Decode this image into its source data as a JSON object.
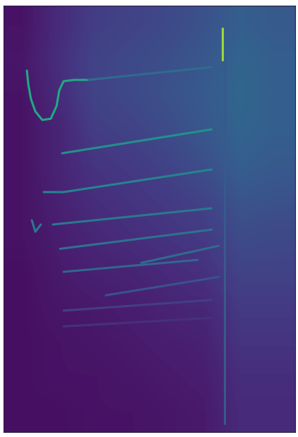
{
  "chart_data": {
    "type": "heatmap",
    "tick_labels": false,
    "xlim": [
      0,
      100
    ],
    "ylim": [
      0,
      100
    ],
    "clim": [
      0,
      1
    ],
    "cells": [
      [
        0.05,
        0.12,
        0.18,
        0.2,
        0.22,
        0.25,
        0.3,
        0.28
      ],
      [
        0.06,
        0.13,
        0.2,
        0.22,
        0.24,
        0.27,
        0.32,
        0.3
      ],
      [
        0.05,
        0.12,
        0.2,
        0.22,
        0.25,
        0.28,
        0.33,
        0.3
      ],
      [
        0.05,
        0.1,
        0.18,
        0.2,
        0.23,
        0.27,
        0.32,
        0.3
      ],
      [
        0.05,
        0.1,
        0.15,
        0.17,
        0.2,
        0.24,
        0.3,
        0.28
      ],
      [
        0.05,
        0.09,
        0.13,
        0.15,
        0.17,
        0.2,
        0.26,
        0.25
      ],
      [
        0.05,
        0.08,
        0.11,
        0.13,
        0.15,
        0.17,
        0.23,
        0.22
      ],
      [
        0.04,
        0.07,
        0.09,
        0.1,
        0.12,
        0.14,
        0.2,
        0.2
      ],
      [
        0.04,
        0.06,
        0.07,
        0.08,
        0.1,
        0.11,
        0.17,
        0.17
      ],
      [
        0.04,
        0.05,
        0.06,
        0.07,
        0.08,
        0.09,
        0.15,
        0.15
      ],
      [
        0.04,
        0.05,
        0.05,
        0.06,
        0.07,
        0.08,
        0.13,
        0.13
      ],
      [
        0.04,
        0.04,
        0.05,
        0.05,
        0.06,
        0.07,
        0.12,
        0.12
      ]
    ],
    "lines": [
      {
        "x": [
          8.0,
          8.5,
          9.4,
          10.9,
          13.3,
          16.2,
          18.2,
          19.1,
          20.6,
          24.2,
          29.1
        ],
        "y": [
          84.8,
          81.5,
          78.1,
          75.2,
          73.2,
          73.5,
          76.5,
          80.1,
          82.3,
          82.6,
          82.6
        ],
        "value": 0.6
      },
      {
        "x": [
          29.1,
          71.4
        ],
        "y": [
          82.6,
          85.6
        ],
        "value": 0.35
      },
      {
        "x": [
          20.1,
          71.4
        ],
        "y": [
          65.4,
          71.0
        ],
        "value": 0.5
      },
      {
        "x": [
          13.8,
          20.6,
          71.4
        ],
        "y": [
          56.3,
          56.3,
          61.6
        ],
        "value": 0.45
      },
      {
        "x": [
          16.9,
          71.4
        ],
        "y": [
          48.7,
          52.5
        ],
        "value": 0.4
      },
      {
        "x": [
          9.7,
          10.9,
          12.8
        ],
        "y": [
          49.7,
          47.0,
          48.7
        ],
        "value": 0.4
      },
      {
        "x": [
          19.4,
          71.4
        ],
        "y": [
          43.0,
          47.5
        ],
        "value": 0.38
      },
      {
        "x": [
          20.6,
          66.6
        ],
        "y": [
          37.6,
          40.4
        ],
        "value": 0.33
      },
      {
        "x": [
          47.2,
          73.8
        ],
        "y": [
          39.7,
          43.7
        ],
        "value": 0.35
      },
      {
        "x": [
          35.1,
          73.8
        ],
        "y": [
          32.1,
          36.4
        ],
        "value": 0.25
      },
      {
        "x": [
          20.6,
          71.4
        ],
        "y": [
          28.5,
          31.0
        ],
        "value": 0.18
      },
      {
        "x": [
          20.6,
          71.4
        ],
        "y": [
          24.8,
          26.8
        ],
        "value": 0.14
      },
      {
        "x": [
          75.1,
          75.1
        ],
        "y": [
          94.7,
          87.3
        ],
        "value": 0.85
      },
      {
        "x": [
          75.8,
          75.8
        ],
        "y": [
          87.3,
          2.0
        ],
        "value": 0.28
      }
    ]
  }
}
